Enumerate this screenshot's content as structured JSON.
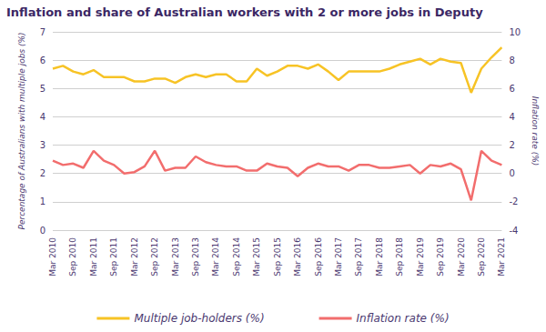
{
  "chart_data": {
    "type": "line",
    "title": "Inflation and share of Australian workers with 2 or more jobs in Deputy",
    "categories": [
      "Mar 2010",
      null,
      "Sep 2010",
      null,
      "Mar 2011",
      null,
      "Sep 2011",
      null,
      "Mar 2012",
      null,
      "Sep 2012",
      null,
      "Mar 2013",
      null,
      "Sep 2013",
      null,
      "Mar 2014",
      null,
      "Sep 2014",
      null,
      "Mar 2015",
      null,
      "Sep 2015",
      null,
      "Mar 2016",
      null,
      "Sep 2016",
      null,
      "Mar 2017",
      null,
      "Sep 2017",
      null,
      "Mar 2018",
      null,
      "Sep 2018",
      null,
      "Mar 2019",
      null,
      "Sep 2019",
      null,
      "Mar 2020",
      null,
      "Sep 2020",
      null,
      "Mar 2021"
    ],
    "series": [
      {
        "name": "Multiple job-holders (%)",
        "color": "#f7c325",
        "values": [
          5.7,
          5.8,
          5.6,
          5.5,
          5.65,
          5.4,
          5.4,
          5.4,
          5.25,
          5.25,
          5.35,
          5.35,
          5.2,
          5.4,
          5.5,
          5.4,
          5.5,
          5.5,
          5.25,
          5.25,
          5.7,
          5.45,
          5.6,
          5.8,
          5.8,
          5.7,
          5.85,
          5.6,
          5.3,
          5.6,
          5.6,
          5.6,
          5.6,
          5.7,
          5.85,
          5.95,
          6.05,
          5.85,
          6.05,
          5.95,
          5.9,
          4.85,
          5.7,
          6.1,
          6.45
        ]
      },
      {
        "name": "Inflation rate (%)",
        "color": "#f26d6d",
        "axis": "y2",
        "values": [
          0.9,
          0.6,
          0.7,
          0.4,
          1.6,
          0.9,
          0.6,
          0.0,
          0.1,
          0.5,
          1.6,
          0.2,
          0.4,
          0.4,
          1.2,
          0.8,
          0.6,
          0.5,
          0.5,
          0.2,
          0.2,
          0.7,
          0.5,
          0.4,
          -0.2,
          0.4,
          0.7,
          0.5,
          0.5,
          0.2,
          0.6,
          0.6,
          0.4,
          0.4,
          0.5,
          0.6,
          0.0,
          0.6,
          0.5,
          0.7,
          0.3,
          -1.9,
          1.6,
          0.9,
          0.6
        ]
      }
    ],
    "ylabel": "Percentage of Australians with multiple jobs (%)",
    "y2label": "Inflation rate (%)",
    "ylim": [
      0,
      7
    ],
    "yticks": [
      0,
      1,
      2,
      3,
      4,
      5,
      6,
      7
    ],
    "y2lim": [
      -4,
      10
    ],
    "y2ticks": [
      -4,
      -2,
      0,
      2,
      4,
      6,
      8,
      10
    ],
    "grid": true,
    "legend": "bottom"
  }
}
